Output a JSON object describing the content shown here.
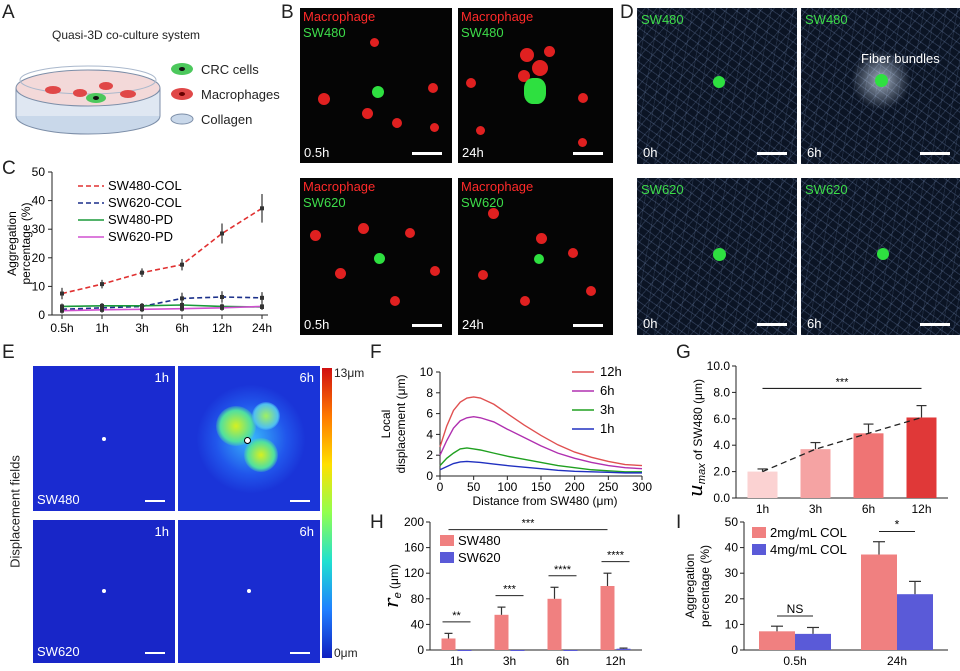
{
  "panels": {
    "A": "A",
    "B": "B",
    "C": "C",
    "D": "D",
    "E": "E",
    "F": "F",
    "G": "G",
    "H": "H",
    "I": "I"
  },
  "panelA": {
    "title": "Quasi-3D co-culture system",
    "legend": [
      "CRC cells",
      "Macrophages",
      "Collagen"
    ]
  },
  "panelB": {
    "label_macrophage": "Macrophage",
    "label_sw480": "SW480",
    "label_sw620": "SW620",
    "times": [
      "0.5h",
      "24h"
    ]
  },
  "panelD": {
    "label_sw480": "SW480",
    "label_sw620": "SW620",
    "annotation": "Fiber bundles",
    "times": [
      "0h",
      "6h"
    ]
  },
  "panelE": {
    "side_label": "Displacement fields",
    "times": [
      "1h",
      "6h"
    ],
    "cells": [
      "SW480",
      "SW620"
    ],
    "colorbar_max": "13μm",
    "colorbar_min": "0μm"
  },
  "chart_data": [
    {
      "id": "C",
      "type": "line",
      "ylabel": "Aggregation percentage (%)",
      "categories": [
        "0.5h",
        "1h",
        "3h",
        "6h",
        "12h",
        "24h"
      ],
      "ylim": [
        0,
        50
      ],
      "yticks": [
        0,
        10,
        20,
        30,
        40,
        50
      ],
      "series": [
        {
          "name": "SW480-COL",
          "color": "#e03030",
          "dash": true,
          "values": [
            7.5,
            10.8,
            14.8,
            17.6,
            28.5,
            37.3
          ],
          "err": [
            2,
            1.5,
            1.5,
            2,
            3.5,
            5
          ]
        },
        {
          "name": "SW620-COL",
          "color": "#1a2f8a",
          "dash": true,
          "values": [
            2.0,
            2.5,
            3.0,
            5.8,
            6.3,
            6.0
          ],
          "err": [
            1,
            1,
            1,
            2,
            2,
            2
          ]
        },
        {
          "name": "SW480-PD",
          "color": "#1a9a3a",
          "dash": false,
          "values": [
            3.0,
            3.2,
            3.2,
            3.5,
            3.0,
            2.8
          ],
          "err": [
            1,
            1,
            1,
            1,
            1,
            1
          ]
        },
        {
          "name": "SW620-PD",
          "color": "#d050d0",
          "dash": false,
          "values": [
            1.5,
            1.8,
            2.0,
            2.2,
            2.5,
            3.0
          ],
          "err": [
            1,
            1,
            1,
            1,
            1,
            1
          ]
        }
      ]
    },
    {
      "id": "F",
      "type": "line",
      "xlabel": "Distance from SW480 (μm)",
      "ylabel": "Local displacement (μm)",
      "xlim": [
        0,
        300
      ],
      "ylim": [
        0,
        10
      ],
      "xticks": [
        0,
        50,
        100,
        150,
        200,
        250,
        300
      ],
      "yticks": [
        0,
        2,
        4,
        6,
        8,
        10
      ],
      "x": [
        0,
        10,
        20,
        30,
        40,
        50,
        60,
        80,
        100,
        125,
        150,
        175,
        200,
        225,
        250,
        275,
        300
      ],
      "series": [
        {
          "name": "12h",
          "color": "#e05050",
          "values": [
            2.8,
            4.8,
            6.3,
            7.1,
            7.5,
            7.6,
            7.5,
            6.9,
            6.0,
            4.9,
            3.9,
            3.0,
            2.3,
            1.8,
            1.4,
            1.1,
            1.0
          ]
        },
        {
          "name": "6h",
          "color": "#b030b0",
          "values": [
            2.0,
            3.4,
            4.6,
            5.3,
            5.6,
            5.7,
            5.6,
            5.2,
            4.5,
            3.7,
            2.9,
            2.2,
            1.7,
            1.3,
            1.0,
            0.8,
            0.7
          ]
        },
        {
          "name": "3h",
          "color": "#20a020",
          "values": [
            1.0,
            1.7,
            2.2,
            2.6,
            2.7,
            2.6,
            2.5,
            2.2,
            1.9,
            1.6,
            1.3,
            1.0,
            0.8,
            0.6,
            0.5,
            0.4,
            0.4
          ]
        },
        {
          "name": "1h",
          "color": "#2030c0",
          "values": [
            0.6,
            0.9,
            1.2,
            1.35,
            1.4,
            1.35,
            1.3,
            1.15,
            1.0,
            0.85,
            0.7,
            0.55,
            0.45,
            0.4,
            0.35,
            0.3,
            0.3
          ]
        }
      ]
    },
    {
      "id": "G",
      "type": "bar",
      "ylabel_sym": "u",
      "ylabel_sub": "max",
      "ylabel_rest": " of SW480 (μm)",
      "categories": [
        "1h",
        "3h",
        "6h",
        "12h"
      ],
      "values": [
        2.0,
        3.7,
        4.9,
        6.1
      ],
      "err": [
        0.2,
        0.5,
        0.7,
        0.9
      ],
      "colors": [
        "#fbd2d2",
        "#f5a3a3",
        "#ef7474",
        "#e03838"
      ],
      "ylim": [
        0,
        10
      ],
      "yticks": [
        "0.0",
        "2.0",
        "4.0",
        "6.0",
        "8.0",
        "10.0"
      ],
      "sig": "***"
    },
    {
      "id": "H",
      "type": "bar",
      "ylabel_sym": "r",
      "ylabel_sub": "e",
      "ylabel_rest": " (μm)",
      "categories": [
        "1h",
        "3h",
        "6h",
        "12h"
      ],
      "ylim": [
        0,
        200
      ],
      "yticks": [
        0,
        40,
        80,
        120,
        160,
        200
      ],
      "series": [
        {
          "name": "SW480",
          "color": "#f08080",
          "values": [
            18,
            55,
            80,
            100
          ],
          "err": [
            8,
            12,
            18,
            20
          ]
        },
        {
          "name": "SW620",
          "color": "#5a5ad8",
          "values": [
            0,
            0,
            0,
            2
          ],
          "err": [
            0,
            0,
            0,
            1
          ]
        }
      ],
      "sigs": [
        "**",
        "***",
        "****",
        "****"
      ],
      "sig_top": "***"
    },
    {
      "id": "I",
      "type": "bar",
      "ylabel": "Aggregation percentage (%)",
      "categories": [
        "0.5h",
        "24h"
      ],
      "ylim": [
        0,
        50
      ],
      "yticks": [
        0,
        10,
        20,
        30,
        40,
        50
      ],
      "series": [
        {
          "name": "2mg/mL COL",
          "color": "#f08080",
          "values": [
            7.3,
            37.3
          ],
          "err": [
            2,
            5
          ]
        },
        {
          "name": "4mg/mL COL",
          "color": "#5a5ad8",
          "values": [
            6.3,
            21.8
          ],
          "err": [
            2.5,
            5
          ]
        }
      ],
      "sigs": [
        "NS",
        "*"
      ]
    }
  ]
}
